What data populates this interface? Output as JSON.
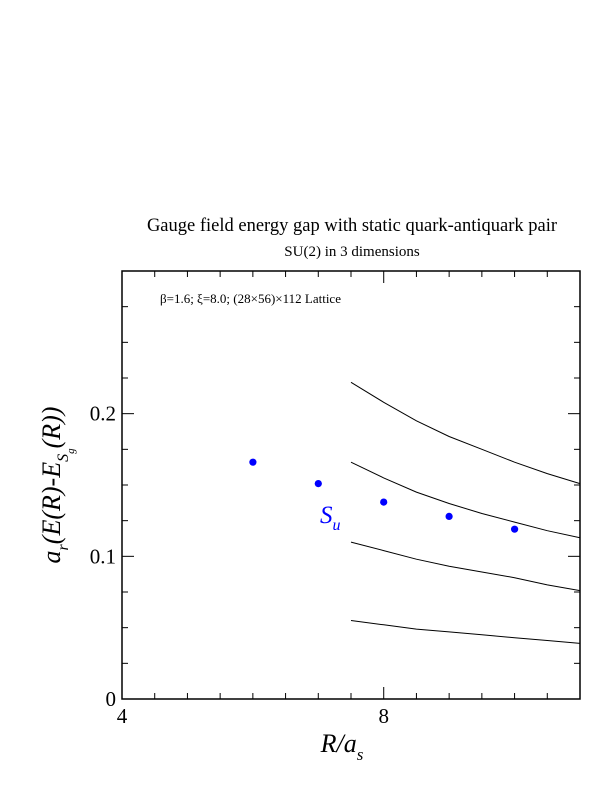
{
  "chart_data": {
    "type": "scatter",
    "title": "Gauge field energy gap with static quark-antiquark pair",
    "subtitle": "SU(2) in 3 dimensions",
    "annotation": "β=1.6;  ξ=8.0; (28×56)×112 Lattice",
    "xlabel": {
      "main": "R/a",
      "sub": "s"
    },
    "ylabel": {
      "pre": "a",
      "pre_sub": "r",
      "mid": "(E(R)-E",
      "mid_sub": "S",
      "mid_subsub": "g",
      "post": "(R))"
    },
    "xlim": [
      4,
      11
    ],
    "ylim": [
      0,
      0.3
    ],
    "x_major_ticks": [
      4,
      8
    ],
    "x_tick_labels": [
      "4",
      "8"
    ],
    "y_major_ticks": [
      0,
      0.1,
      0.2
    ],
    "y_tick_labels": [
      "0",
      "0.1",
      "0.2"
    ],
    "grid": false,
    "series": [
      {
        "name": "S",
        "name_sub": "u",
        "color": "#0000ff",
        "marker": "circle",
        "x": [
          6,
          7,
          8,
          9,
          10
        ],
        "y": [
          0.166,
          0.151,
          0.138,
          0.128,
          0.119
        ]
      }
    ],
    "curves": [
      {
        "color": "#000000",
        "x": [
          7.5,
          8,
          8.5,
          9,
          9.5,
          10,
          10.5,
          11
        ],
        "y": [
          0.222,
          0.208,
          0.195,
          0.184,
          0.175,
          0.166,
          0.158,
          0.151
        ]
      },
      {
        "color": "#000000",
        "x": [
          7.5,
          8,
          8.5,
          9,
          9.5,
          10,
          10.5,
          11
        ],
        "y": [
          0.166,
          0.155,
          0.145,
          0.137,
          0.13,
          0.124,
          0.118,
          0.113
        ]
      },
      {
        "color": "#000000",
        "x": [
          7.5,
          8,
          8.5,
          9,
          9.5,
          10,
          10.5,
          11
        ],
        "y": [
          0.11,
          0.104,
          0.098,
          0.093,
          0.089,
          0.085,
          0.08,
          0.076
        ]
      },
      {
        "color": "#000000",
        "x": [
          7.5,
          8,
          8.5,
          9,
          9.5,
          10,
          10.5,
          11
        ],
        "y": [
          0.055,
          0.052,
          0.049,
          0.047,
          0.045,
          0.043,
          0.041,
          0.039
        ]
      }
    ]
  }
}
